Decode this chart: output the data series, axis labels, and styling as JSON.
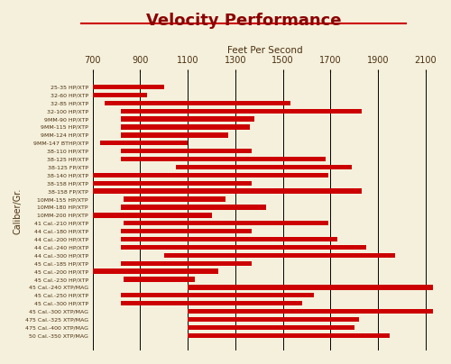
{
  "title": "Velocity Performance",
  "subtitle": "Feet Per Second",
  "xlabel": "Caliber/Gr.",
  "x_ticks": [
    700,
    900,
    1100,
    1300,
    1500,
    1700,
    1900,
    2100
  ],
  "x_min": 700,
  "x_max": 2150,
  "background_color": "#F5F0DC",
  "bar_color": "#CC0000",
  "title_color": "#8B0000",
  "label_color": "#4B3010",
  "categories": [
    "25-35 HP/XTP",
    "32-60 HP/XTP",
    "32-85 HP/XTP",
    "32-100 HP/XTP",
    "9MM-90 HP/XTP",
    "9MM-115 HP/XTP",
    "9MM-124 HP/XTP",
    "9MM-147 BTHP/XTP",
    "38-110 HP/XTP",
    "38-125 HP/XTP",
    "38-125 FP/XTP",
    "38-140 HP/XTP",
    "38-158 HP/XTP",
    "38-158 FP/XTP",
    "10MM-155 HP/XTP",
    "10MM-180 HP/XTP",
    "10MM-200 HP/XTP",
    "41 Cal.-210 HP/XTP",
    "44 Cal.-180 HP/XTP",
    "44 Cal.-200 HP/XTP",
    "44 Cal.-240 HP/XTP",
    "44 Cal.-300 HP/XTP",
    "45 Cal.-185 HP/XTP",
    "45 Cal.-200 HP/XTP",
    "45 Cal.-230 HP/XTP",
    "45 Cal.-240 XTP/MAG",
    "45 Cal.-250 HP/XTP",
    "45 Cal.-300 HP/XTP",
    "45 Cal.-300 XTP/MAG",
    "475 Cal.-325 XTP/MAG",
    "475 Cal.-400 XTP/MAG",
    "50 Cal.-350 XTP/MAG"
  ],
  "bar_starts": [
    700,
    700,
    750,
    820,
    820,
    820,
    820,
    730,
    820,
    820,
    1050,
    700,
    700,
    700,
    830,
    820,
    700,
    830,
    820,
    820,
    820,
    1000,
    820,
    700,
    830,
    1100,
    820,
    820,
    1100,
    1100,
    1100,
    1100
  ],
  "bar_ends": [
    1000,
    930,
    1530,
    1830,
    1380,
    1360,
    1270,
    1100,
    1370,
    1680,
    1790,
    1690,
    1370,
    1830,
    1260,
    1430,
    1200,
    1690,
    1370,
    1730,
    1850,
    1970,
    1370,
    1230,
    1130,
    2130,
    1630,
    1580,
    2130,
    1820,
    1800,
    1950
  ]
}
